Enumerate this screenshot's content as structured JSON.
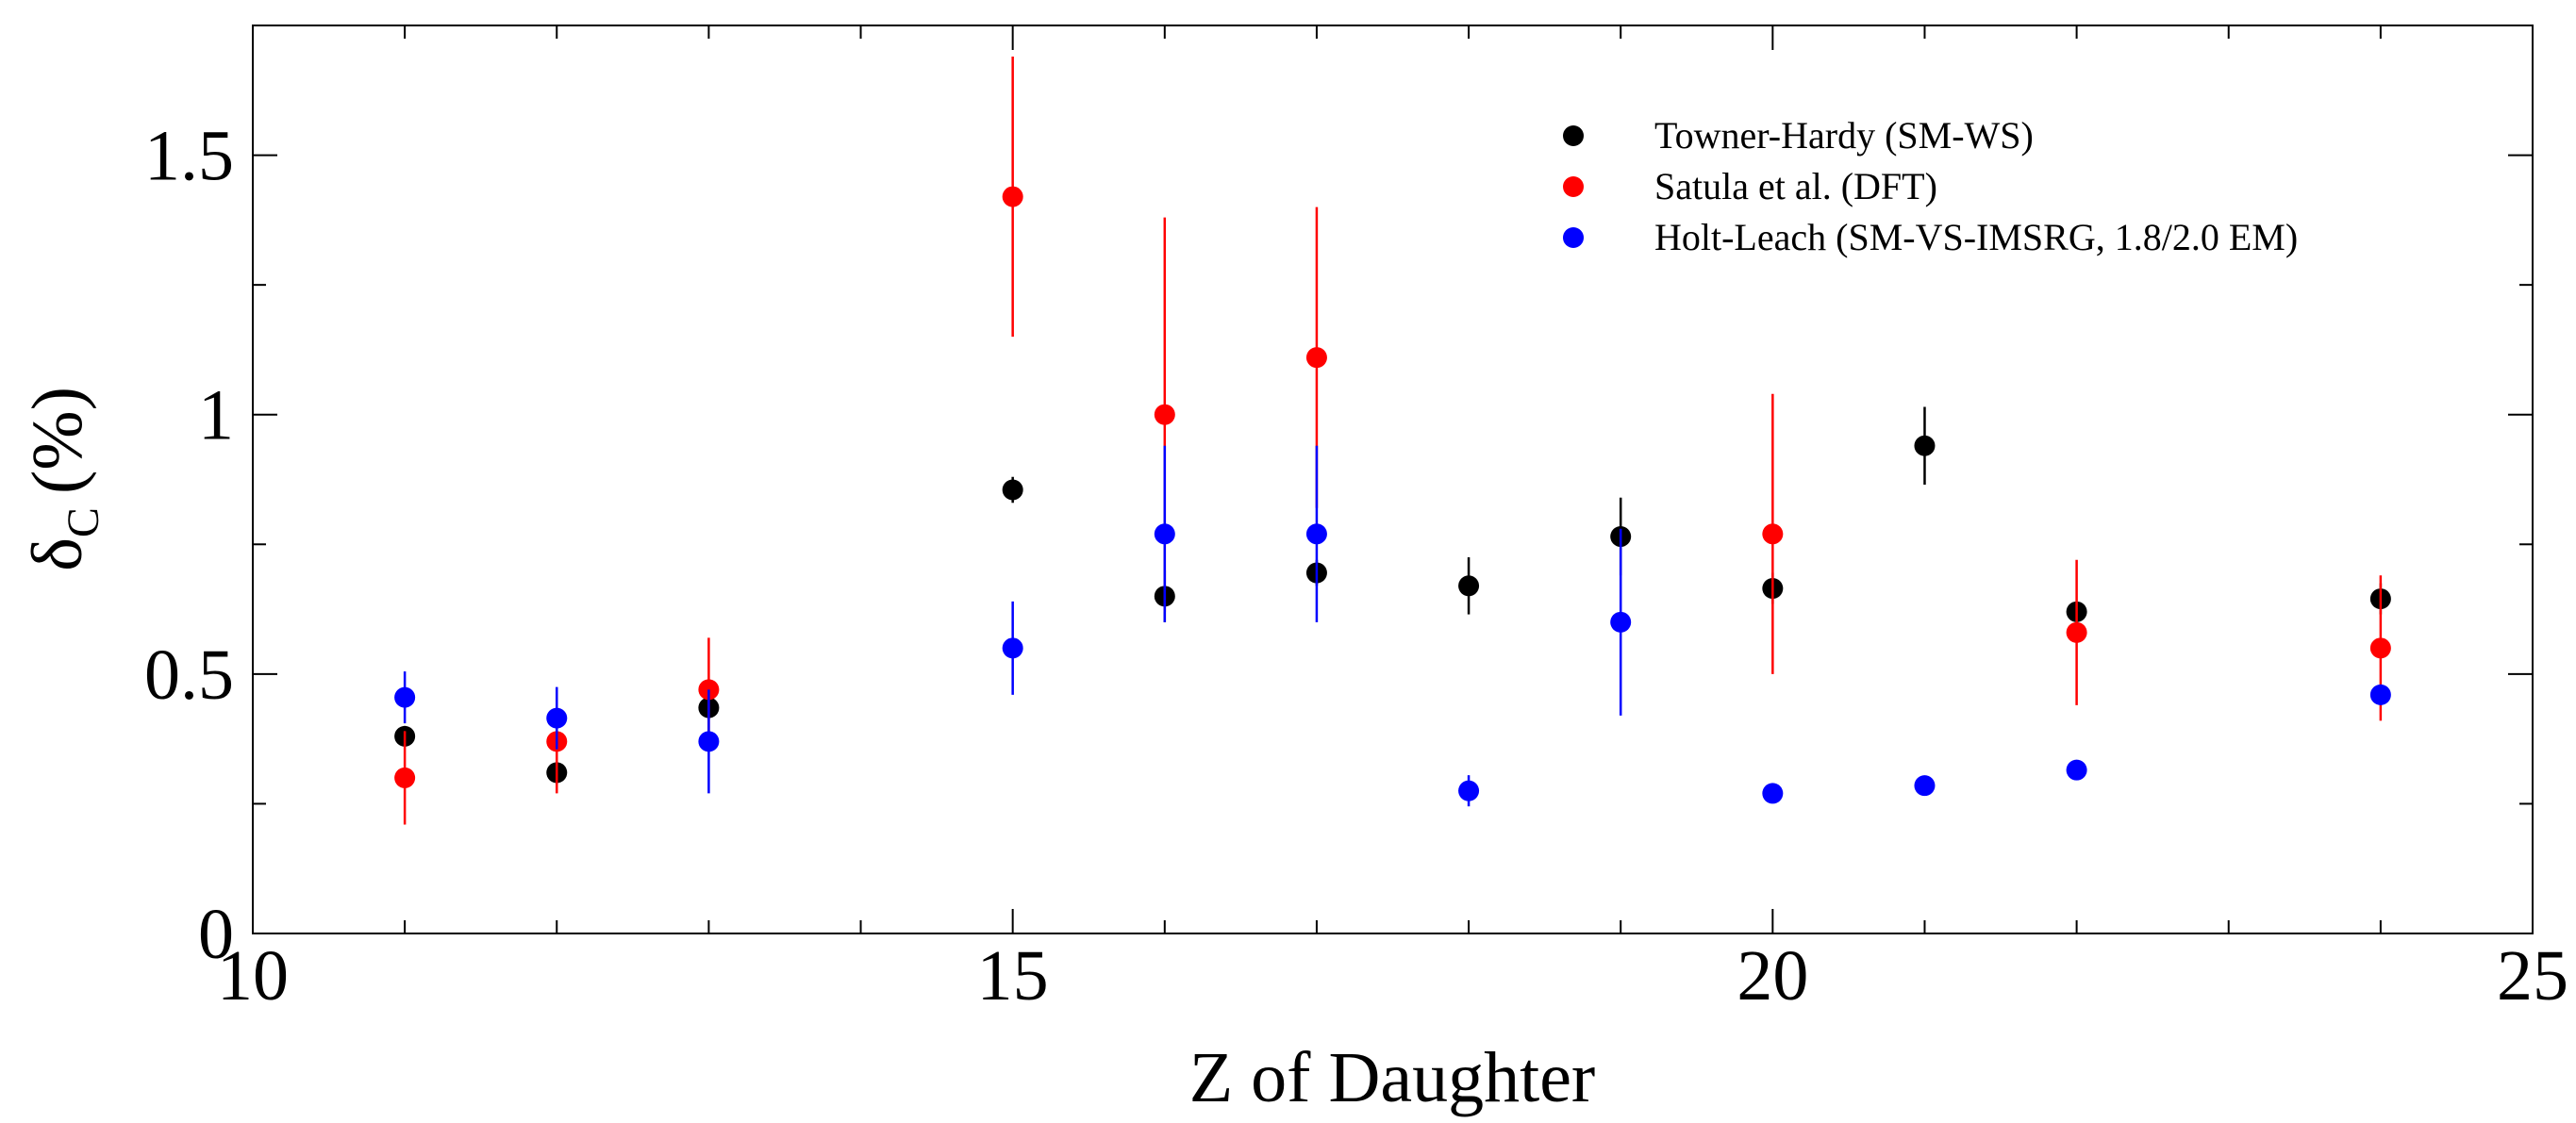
{
  "chart_data": {
    "type": "scatter",
    "title": "",
    "xlabel": "Z of Daughter",
    "ylabel": {
      "main": "δ",
      "sub": "C",
      "unit": "(%)"
    },
    "xlim": [
      10,
      25
    ],
    "ylim": [
      0,
      1.75
    ],
    "x_major_ticks": [
      10,
      15,
      20,
      25
    ],
    "x_minor_ticks": [
      11,
      12,
      13,
      14,
      16,
      17,
      18,
      19,
      21,
      22,
      23,
      24
    ],
    "x_tick_labels": [
      "10",
      "15",
      "20",
      "25"
    ],
    "y_major_ticks": [
      0,
      0.5,
      1,
      1.5
    ],
    "y_minor_ticks": [
      0.25,
      0.75,
      1.25
    ],
    "y_tick_labels": [
      "0",
      "0.5",
      "1",
      "1.5"
    ],
    "grid": false,
    "legend_position": "top-right",
    "series": [
      {
        "name": "Towner-Hardy (SM-WS)",
        "color": "#000000",
        "points": [
          {
            "x": 11,
            "y": 0.38,
            "err": 0.02
          },
          {
            "x": 12,
            "y": 0.31,
            "err": 0.02
          },
          {
            "x": 13,
            "y": 0.435,
            "err": 0.015
          },
          {
            "x": 15,
            "y": 0.855,
            "err": 0.025
          },
          {
            "x": 16,
            "y": 0.65,
            "err": 0.05
          },
          {
            "x": 17,
            "y": 0.695,
            "err": 0.025
          },
          {
            "x": 18,
            "y": 0.67,
            "err": 0.055
          },
          {
            "x": 19,
            "y": 0.765,
            "err": 0.075
          },
          {
            "x": 20,
            "y": 0.665,
            "err": 0.03
          },
          {
            "x": 21,
            "y": 0.94,
            "err": 0.075
          },
          {
            "x": 22,
            "y": 0.62,
            "err": 0.02
          },
          {
            "x": 24,
            "y": 0.645,
            "err": 0.03
          }
        ]
      },
      {
        "name": "Satula et al. (DFT)",
        "color": "#ff0000",
        "points": [
          {
            "x": 11,
            "y": 0.3,
            "err": 0.09
          },
          {
            "x": 12,
            "y": 0.37,
            "err": 0.1
          },
          {
            "x": 13,
            "y": 0.47,
            "err": 0.1
          },
          {
            "x": 15,
            "y": 1.42,
            "err": 0.27
          },
          {
            "x": 16,
            "y": 1.0,
            "err": 0.38
          },
          {
            "x": 17,
            "y": 1.11,
            "err": 0.29
          },
          {
            "x": 20,
            "y": 0.77,
            "err": 0.27
          },
          {
            "x": 22,
            "y": 0.58,
            "err": 0.14
          },
          {
            "x": 24,
            "y": 0.55,
            "err": 0.14
          }
        ]
      },
      {
        "name": "Holt-Leach (SM-VS-IMSRG, 1.8/2.0 EM)",
        "color": "#0000ff",
        "points": [
          {
            "x": 11,
            "y": 0.455,
            "err": 0.05
          },
          {
            "x": 12,
            "y": 0.415,
            "err": 0.06
          },
          {
            "x": 13,
            "y": 0.37,
            "err": 0.1
          },
          {
            "x": 15,
            "y": 0.55,
            "err": 0.09
          },
          {
            "x": 16,
            "y": 0.77,
            "err": 0.17
          },
          {
            "x": 17,
            "y": 0.77,
            "err": 0.17
          },
          {
            "x": 18,
            "y": 0.275,
            "err": 0.03
          },
          {
            "x": 19,
            "y": 0.6,
            "err": 0.18
          },
          {
            "x": 20,
            "y": 0.27,
            "err": 0.015
          },
          {
            "x": 21,
            "y": 0.285,
            "err": 0.015
          },
          {
            "x": 22,
            "y": 0.315,
            "err": 0.015
          },
          {
            "x": 24,
            "y": 0.46,
            "err": 0.02
          }
        ]
      }
    ]
  }
}
